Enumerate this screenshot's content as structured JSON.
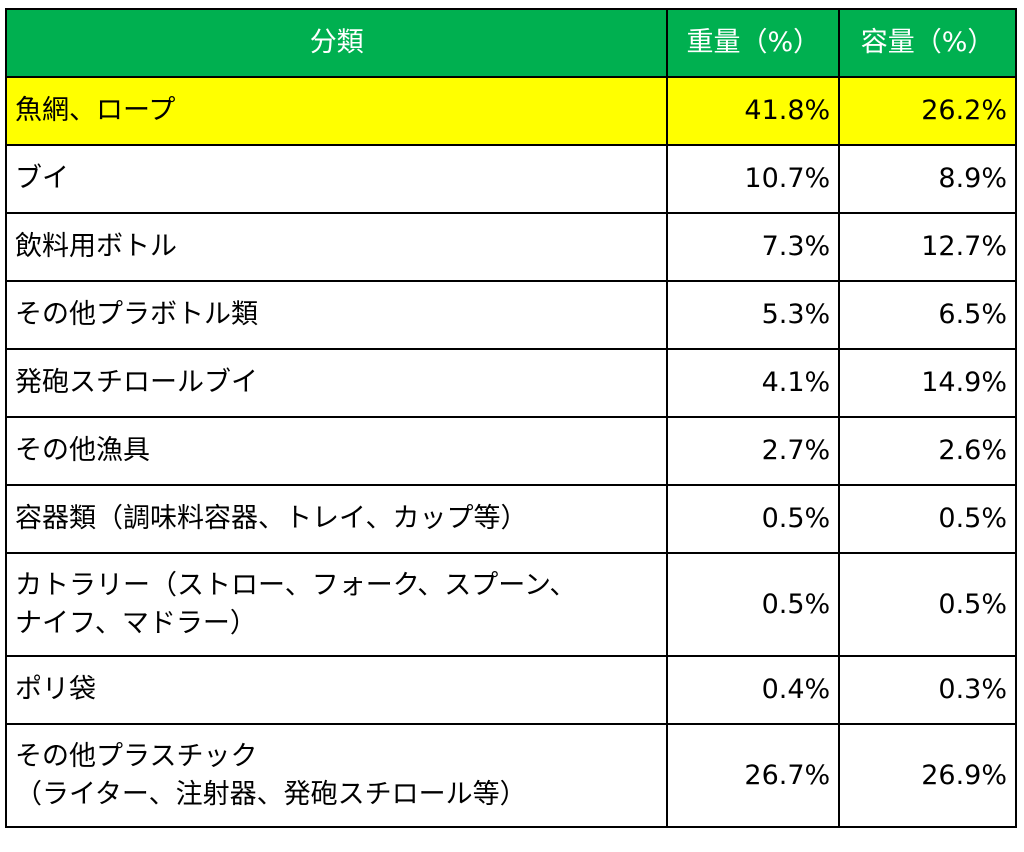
{
  "colors": {
    "header_bg": "#00B050",
    "header_text": "#FFFFFF",
    "highlight_bg": "#FFFF00"
  },
  "headers": [
    "分類",
    "重量（%）",
    "容量（%）"
  ],
  "rows": [
    {
      "category": "魚網、ロープ",
      "weight": "41.8%",
      "volume": "26.2%",
      "highlighted": true
    },
    {
      "category": "ブイ",
      "weight": "10.7%",
      "volume": "8.9%"
    },
    {
      "category": "飲料用ボトル",
      "weight": "7.3%",
      "volume": "12.7%"
    },
    {
      "category": "その他プラボトル類",
      "weight": "5.3%",
      "volume": "6.5%"
    },
    {
      "category": "発砲スチロールブイ",
      "weight": "4.1%",
      "volume": "14.9%"
    },
    {
      "category": "その他漁具",
      "weight": "2.7%",
      "volume": "2.6%"
    },
    {
      "category": "容器類（調味料容器、トレイ、カップ等）",
      "weight": "0.5%",
      "volume": "0.5%"
    },
    {
      "category": "カトラリー（ストロー、フォーク、スプーン、ナイフ、マドラー）",
      "weight": "0.5%",
      "volume": "0.5%"
    },
    {
      "category": "ポリ袋",
      "weight": "0.4%",
      "volume": "0.3%"
    },
    {
      "category": "その他プラスチック（ライター、注射器、発砲スチロール等）",
      "weight": "26.7%",
      "volume": "26.9%"
    }
  ]
}
